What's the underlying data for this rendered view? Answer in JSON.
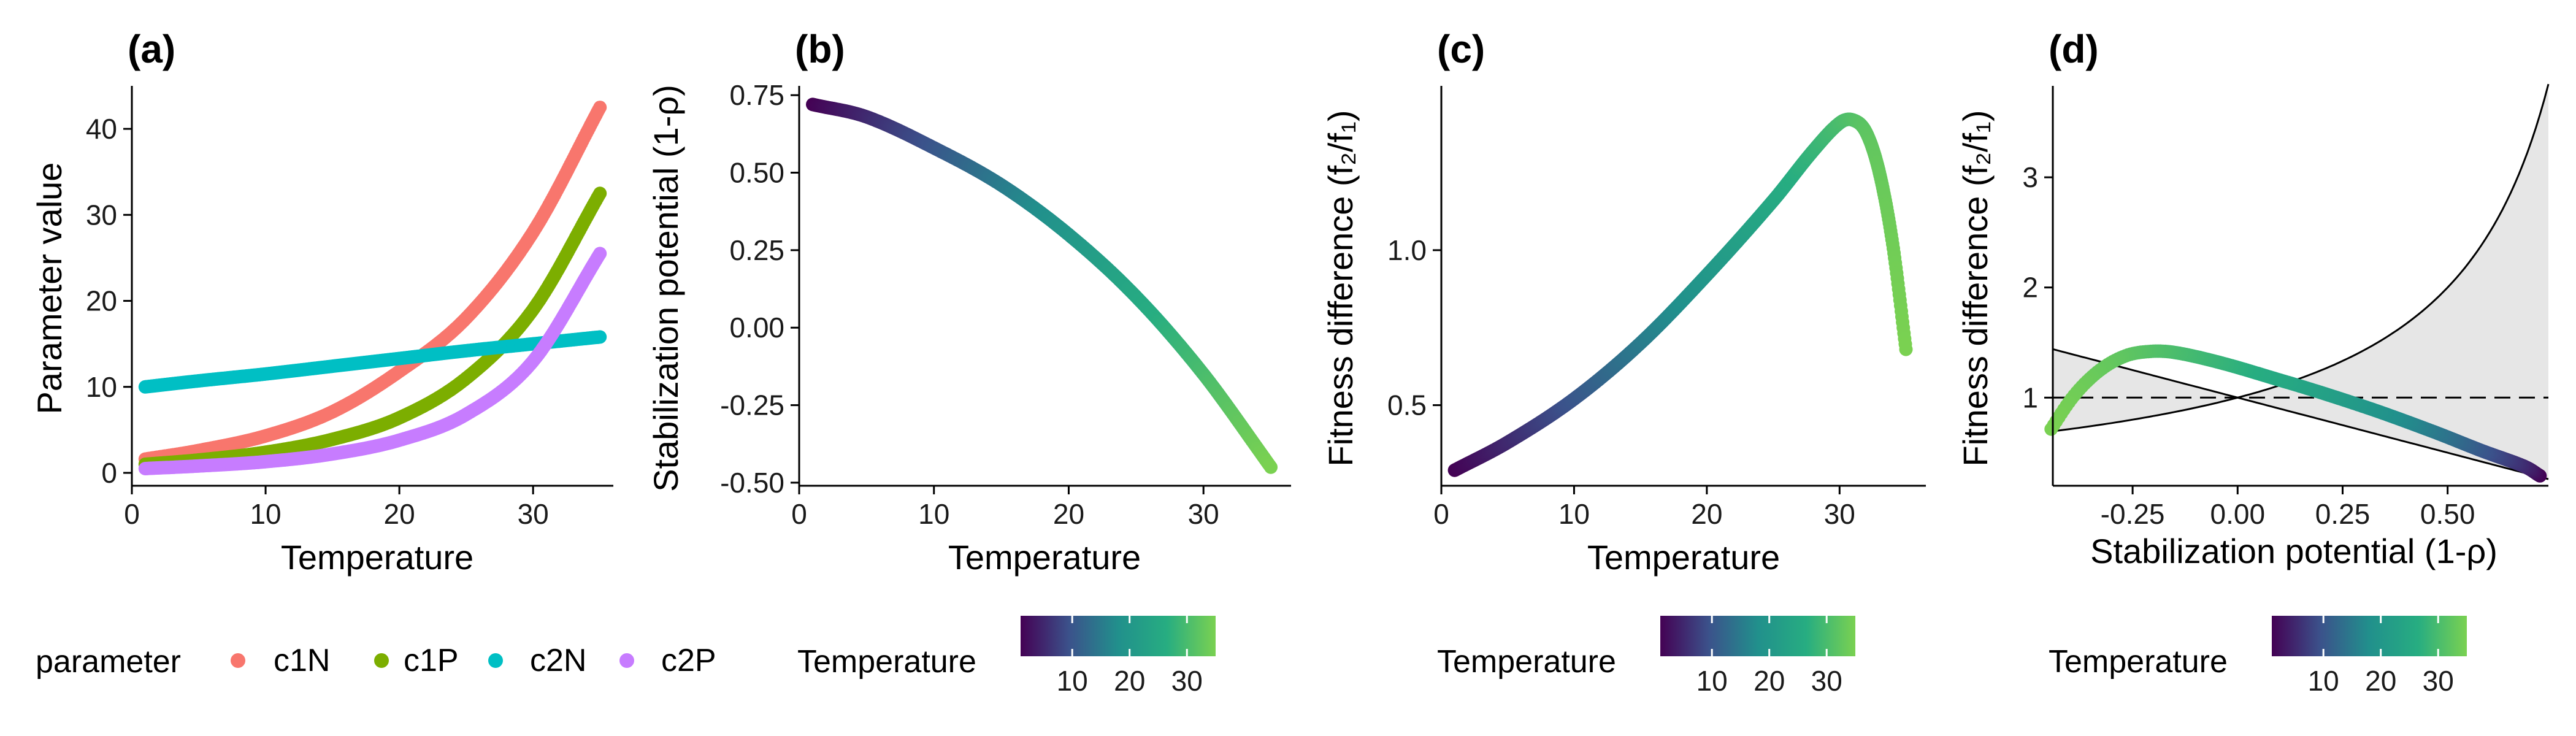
{
  "chart_data": [
    {
      "type": "line",
      "panel": "(a)",
      "xlabel": "Temperature",
      "ylabel": "Parameter value",
      "xlim": [
        0,
        36
      ],
      "ylim": [
        -1.5,
        45
      ],
      "xticks": [
        0,
        10,
        20,
        30
      ],
      "yticks": [
        0,
        10,
        20,
        30,
        40
      ],
      "grid": false,
      "legend": {
        "title": "parameter",
        "placement": "bottom",
        "entries": [
          {
            "label": "c1N",
            "color": "#F8766D"
          },
          {
            "label": "c1P",
            "color": "#7CAE00"
          },
          {
            "label": "c2N",
            "color": "#00BFC4"
          },
          {
            "label": "c2P",
            "color": "#C77CFF"
          }
        ]
      },
      "series": [
        {
          "name": "c1N",
          "color": "#F8766D",
          "x": [
            1,
            5,
            10,
            15,
            20,
            25,
            30,
            35
          ],
          "values": [
            1.6,
            2.6,
            4.3,
            7.1,
            11.8,
            18.0,
            28.0,
            42.5
          ]
        },
        {
          "name": "c1P",
          "color": "#7CAE00",
          "x": [
            1,
            5,
            10,
            15,
            20,
            25,
            30,
            35
          ],
          "values": [
            1.0,
            1.5,
            2.4,
            3.9,
            6.4,
            11.0,
            19.0,
            32.5
          ]
        },
        {
          "name": "c2N",
          "color": "#00BFC4",
          "x": [
            1,
            5,
            10,
            15,
            20,
            25,
            30,
            35
          ],
          "values": [
            10.0,
            10.7,
            11.5,
            12.4,
            13.3,
            14.2,
            15.0,
            15.8
          ]
        },
        {
          "name": "c2P",
          "color": "#C77CFF",
          "x": [
            1,
            5,
            10,
            15,
            20,
            25,
            30,
            35
          ],
          "values": [
            0.5,
            0.8,
            1.3,
            2.2,
            3.8,
            6.8,
            13.0,
            25.5
          ]
        }
      ]
    },
    {
      "type": "scatter",
      "panel": "(b)",
      "xlabel": "Temperature",
      "ylabel": "Stabilization potential (1-ρ)",
      "xlim": [
        0,
        36.5
      ],
      "ylim": [
        -0.51,
        0.78
      ],
      "xticks": [
        0,
        10,
        20,
        30
      ],
      "yticks": [
        -0.5,
        -0.25,
        0,
        0.25,
        0.5,
        0.75
      ],
      "ytick_labels": [
        "-0.50",
        "-0.25",
        "0.00",
        "0.25",
        "0.50",
        "0.75"
      ],
      "grid": false,
      "color_by": "Temperature",
      "x": [
        1,
        5,
        10,
        15,
        20,
        25,
        30,
        35
      ],
      "y": [
        0.72,
        0.68,
        0.58,
        0.46,
        0.3,
        0.1,
        -0.15,
        -0.45
      ]
    },
    {
      "type": "scatter",
      "panel": "(c)",
      "xlabel": "Temperature",
      "ylabel": "Fitness difference (f₂/f₁)",
      "xlim": [
        0,
        36.5
      ],
      "ylim": [
        0.24,
        1.53
      ],
      "xticks": [
        0,
        10,
        20,
        30
      ],
      "yticks": [
        0.5,
        1.0
      ],
      "ytick_labels": [
        "0.5",
        "1.0"
      ],
      "grid": false,
      "color_by": "Temperature",
      "x": [
        1,
        5,
        10,
        15,
        20,
        25,
        28,
        30,
        31,
        32,
        33,
        34,
        35
      ],
      "y": [
        0.29,
        0.38,
        0.52,
        0.7,
        0.92,
        1.16,
        1.32,
        1.41,
        1.42,
        1.38,
        1.25,
        1.02,
        0.68
      ]
    },
    {
      "type": "scatter",
      "panel": "(d)",
      "xlabel": "Stabilization potential (1-ρ)",
      "ylabel": "Fitness difference (f₂/f₁)",
      "xlim": [
        -0.44,
        0.74
      ],
      "ylim": [
        0.2,
        3.83
      ],
      "xticks": [
        -0.25,
        0,
        0.25,
        0.5
      ],
      "xtick_labels": [
        "-0.25",
        "0.00",
        "0.25",
        "0.50"
      ],
      "yticks": [
        1,
        2,
        3
      ],
      "ytick_labels": [
        "1",
        "2",
        "3"
      ],
      "grid": false,
      "color_by": "Temperature",
      "reference_line_y": 1,
      "coexistence_region": "shaded",
      "x": [
        -0.45,
        -0.3,
        -0.15,
        0.1,
        0.3,
        0.46,
        0.58,
        0.68,
        0.72
      ],
      "y": [
        0.68,
        1.32,
        1.42,
        1.16,
        0.92,
        0.7,
        0.52,
        0.38,
        0.29
      ]
    }
  ],
  "colorbars": [
    {
      "title": "Temperature",
      "ticks": [
        "10",
        "20",
        "30"
      ]
    },
    {
      "title": "Temperature",
      "ticks": [
        "10",
        "20",
        "30"
      ]
    },
    {
      "title": "Temperature",
      "ticks": [
        "10",
        "20",
        "30"
      ]
    }
  ],
  "colors": {
    "viridis_low": "#440154",
    "viridis_mid": "#21908C",
    "viridis_high": "#7AD151",
    "coexistence_fill": "#E6E6E6"
  }
}
